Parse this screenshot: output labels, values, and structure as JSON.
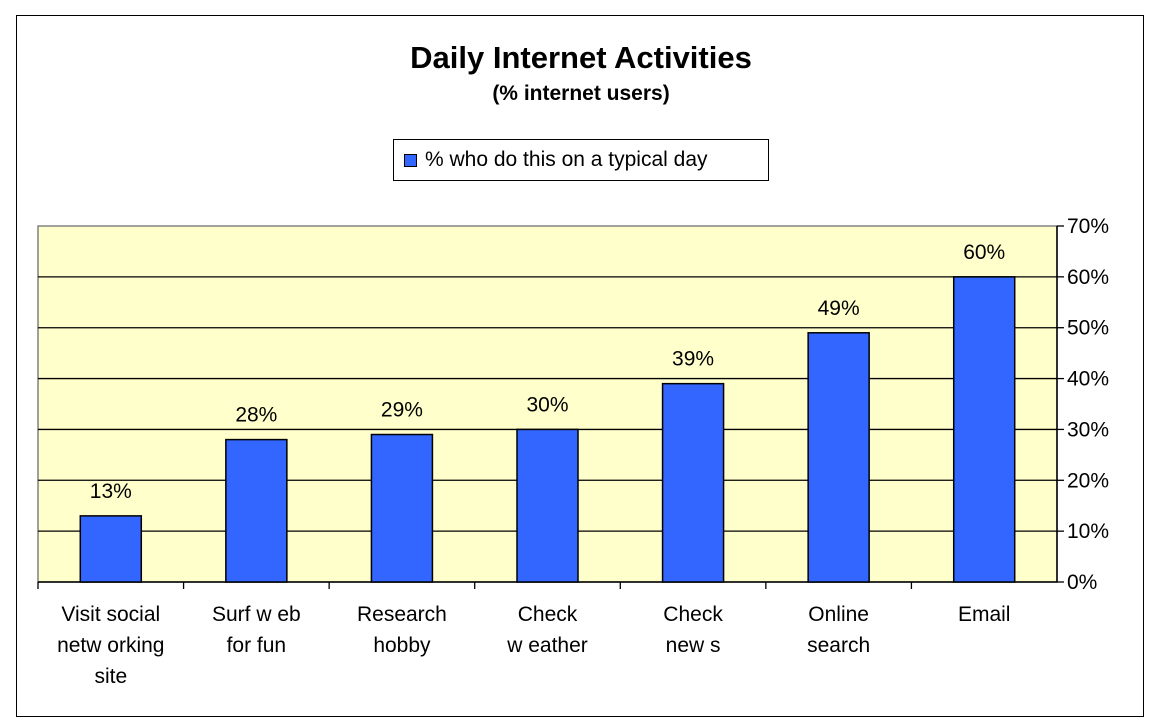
{
  "chart_data": {
    "type": "bar",
    "title": "Daily Internet Activities",
    "subtitle": "(% internet users)",
    "categories": [
      [
        "Visit social",
        "netw orking",
        "site"
      ],
      [
        "Surf w eb",
        "for fun"
      ],
      [
        "Research",
        "hobby"
      ],
      [
        "Check",
        "w eather"
      ],
      [
        "Check",
        "new s"
      ],
      [
        "Online",
        "search"
      ],
      [
        "Email"
      ]
    ],
    "series": [
      {
        "name": "% who do this on a typical day",
        "values": [
          13,
          28,
          29,
          30,
          39,
          49,
          60
        ],
        "labels": [
          "13%",
          "28%",
          "29%",
          "30%",
          "39%",
          "49%",
          "60%"
        ],
        "color": "#3366ff"
      }
    ],
    "ylim": [
      0,
      70
    ],
    "yticks": [
      "0%",
      "10%",
      "20%",
      "30%",
      "40%",
      "50%",
      "60%",
      "70%"
    ],
    "y_axis_side": "right",
    "grid": true,
    "plot_background": "#ffffcc",
    "legend_position": "top"
  }
}
